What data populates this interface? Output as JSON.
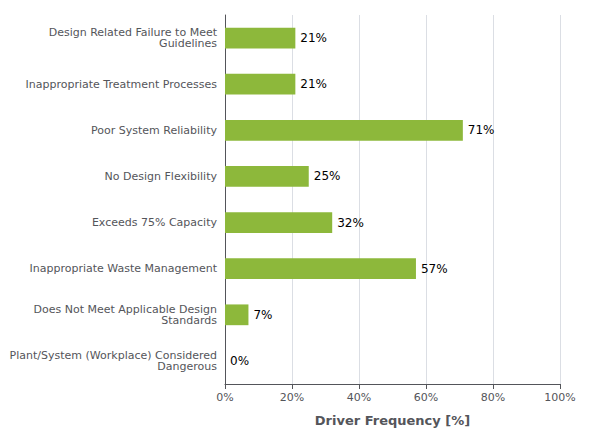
{
  "chart_data": {
    "type": "bar",
    "orientation": "horizontal",
    "categories": [
      "Plant/System (Workplace) Considered\nDangerous",
      "Does Not Meet Applicable Design\nStandards",
      "Inappropriate Waste Management",
      "Exceeds 75% Capacity",
      "No Design Flexibility",
      "Poor System Reliability",
      "Inappropriate Treatment Processes",
      "Design Related Failure to Meet\nGuidelines"
    ],
    "values": [
      0,
      7,
      57,
      32,
      25,
      71,
      21,
      21
    ],
    "value_labels": [
      "0%",
      "7%",
      "57%",
      "32%",
      "25%",
      "71%",
      "21%",
      "21%"
    ],
    "data_labels": true,
    "color": "#8db83b",
    "xlabel": "Driver Frequency [%]",
    "xlim": [
      0,
      100
    ],
    "xticks": [
      {
        "value": 0,
        "label": "0%"
      },
      {
        "value": 20,
        "label": "20%"
      },
      {
        "value": 40,
        "label": "40%"
      },
      {
        "value": 60,
        "label": "60%"
      },
      {
        "value": 80,
        "label": "80%"
      },
      {
        "value": 100,
        "label": "100%"
      }
    ],
    "grid": true
  }
}
